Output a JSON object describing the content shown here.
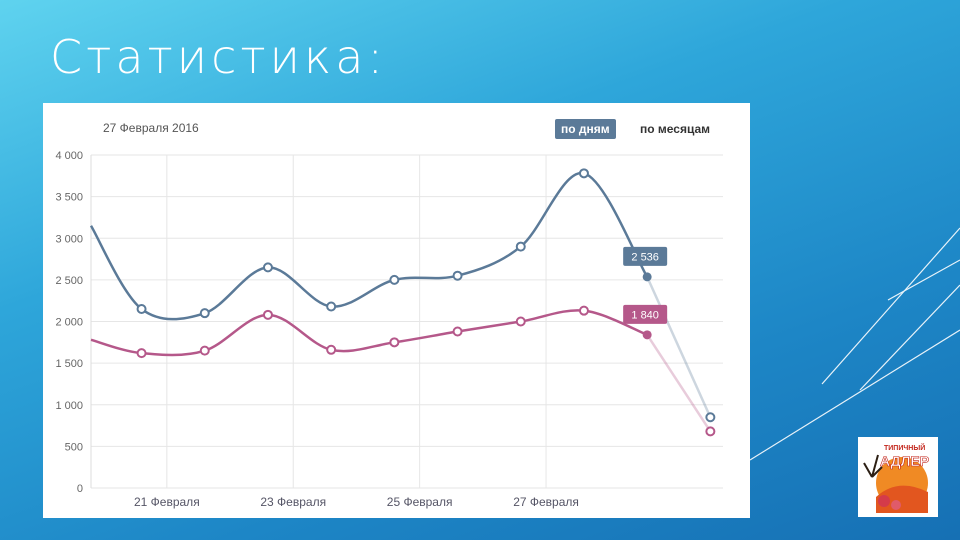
{
  "slide": {
    "title": "Статистика:"
  },
  "chart_header": {
    "date": "27 Февраля 2016",
    "period_days_label": "по дням",
    "period_months_label": "по месяцам"
  },
  "logo": {
    "text_top": "ТИПИЧНЫЙ",
    "text_main": "АДЛЕР"
  },
  "colors": {
    "series1": "#5b7a98",
    "series2": "#b5588a",
    "bg_top": "#5fd3ef",
    "bg_bottom": "#1670b4"
  },
  "chart_data": {
    "type": "line",
    "ylim": [
      0,
      4000
    ],
    "yticks": [
      "0",
      "500",
      "1 000",
      "1 500",
      "2 000",
      "2 500",
      "3 000",
      "3 500",
      "4 000"
    ],
    "ytick_values": [
      0,
      500,
      1000,
      1500,
      2000,
      2500,
      3000,
      3500,
      4000
    ],
    "xticks": [
      "21 Февраля",
      "23 Февраля",
      "25 Февраля",
      "27 Февраля"
    ],
    "xtick_values": [
      21,
      23,
      25,
      27
    ],
    "xlim": [
      19.8,
      29.8
    ],
    "series": [
      {
        "color": "#5b7a98",
        "x": [
          19.8,
          20.6,
          21.6,
          22.6,
          23.6,
          24.6,
          25.6,
          26.6,
          27.6,
          28.6,
          29.6
        ],
        "values": [
          3150,
          2150,
          2100,
          2650,
          2180,
          2500,
          2550,
          2900,
          3780,
          2536,
          850
        ],
        "callout_value": "2 536"
      },
      {
        "color": "#b5588a",
        "x": [
          19.8,
          20.6,
          21.6,
          22.6,
          23.6,
          24.6,
          25.6,
          26.6,
          27.6,
          28.6,
          29.6
        ],
        "values": [
          1780,
          1620,
          1650,
          2080,
          1660,
          1750,
          1880,
          2000,
          2130,
          1840,
          680
        ],
        "callout_value": "1 840"
      }
    ]
  }
}
